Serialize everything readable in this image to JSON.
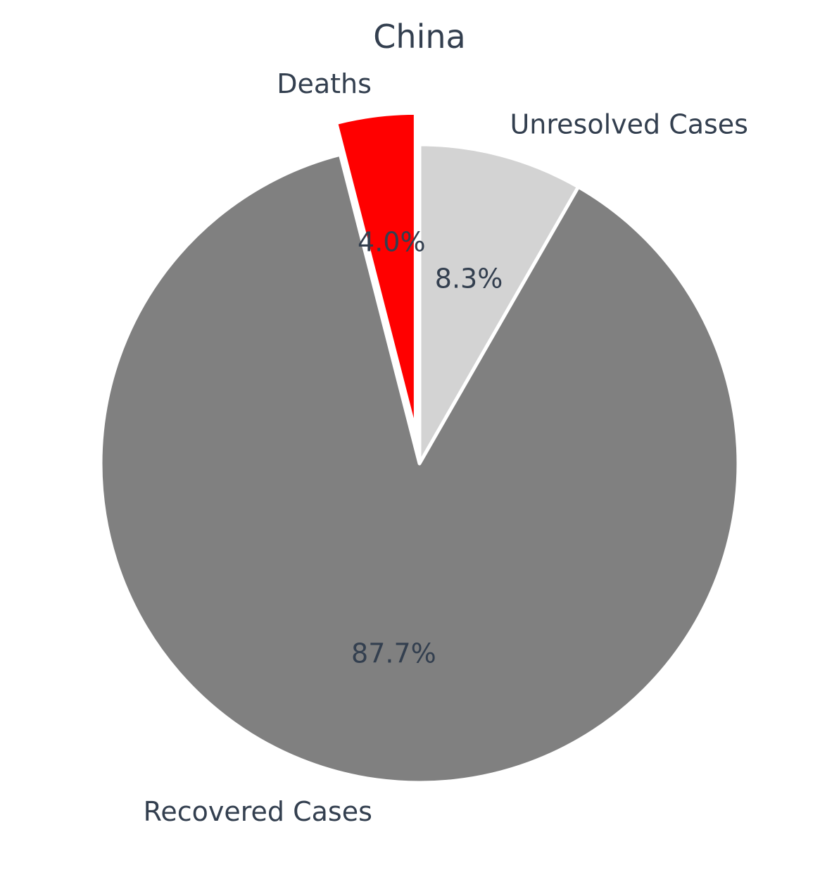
{
  "chart_data": {
    "type": "pie",
    "title": "China",
    "slices": [
      {
        "label": "Unresolved Cases",
        "value": 8.3,
        "pct_label": "8.3%",
        "color": "#d3d3d3",
        "exploded": false
      },
      {
        "label": "Recovered Cases",
        "value": 87.7,
        "pct_label": "87.7%",
        "color": "#808080",
        "exploded": false
      },
      {
        "label": "Deaths",
        "value": 4.0,
        "pct_label": "4.0%",
        "color": "#ff0000",
        "exploded": true
      }
    ],
    "start": "top",
    "direction": "clockwise",
    "text_color": "#333f4f",
    "edge_color": "#ffffff"
  }
}
